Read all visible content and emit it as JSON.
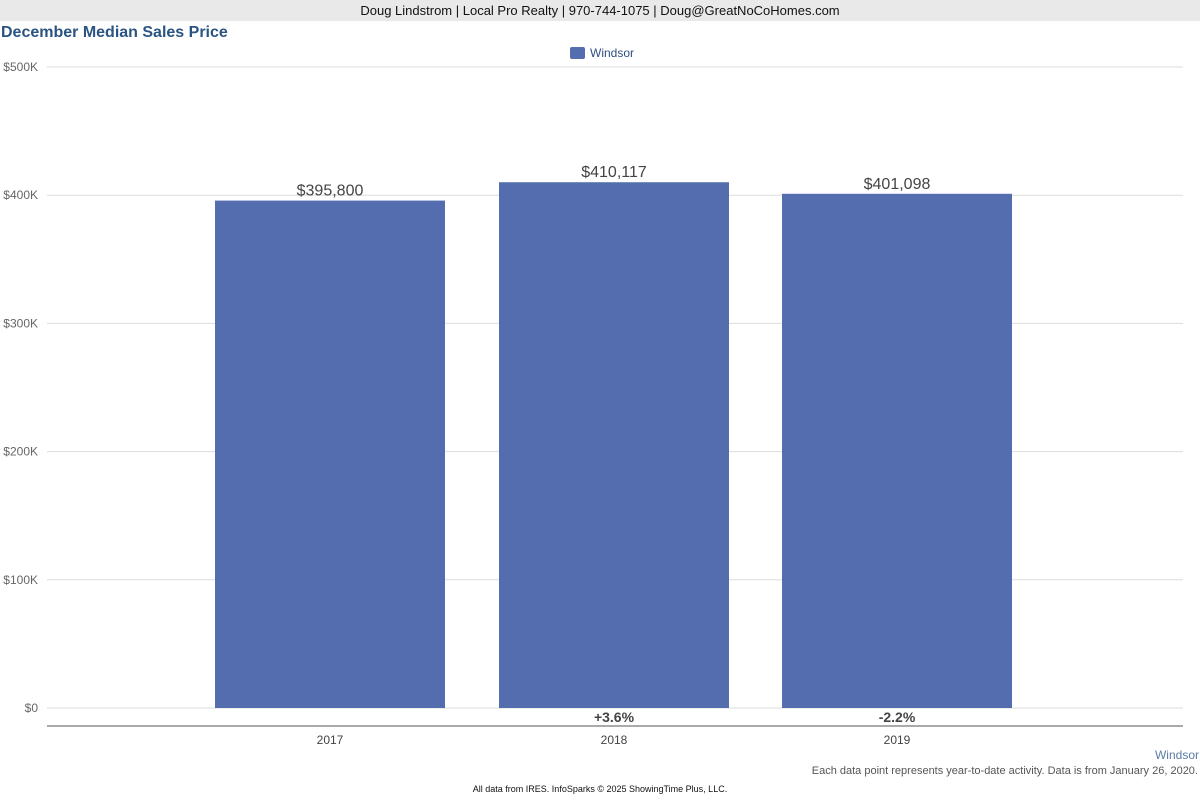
{
  "header": {
    "contact_line": "Doug Lindstrom | Local Pro Realty | 970-744-1075 | Doug@GreatNoCoHomes.com"
  },
  "chart_data": {
    "type": "bar",
    "title": "December Median Sales Price",
    "categories": [
      "2017",
      "2018",
      "2019"
    ],
    "series": [
      {
        "name": "Windsor",
        "values": [
          395800,
          410117,
          401098
        ],
        "value_labels": [
          "$395,800",
          "$410,117",
          "$401,098"
        ],
        "changes": [
          "",
          "+3.6%",
          "-2.2%"
        ],
        "color": "#536daf"
      }
    ],
    "ylim": [
      0,
      500000
    ],
    "yticks": [
      0,
      100000,
      200000,
      300000,
      400000,
      500000
    ],
    "ytick_labels": [
      "$0",
      "$100K",
      "$200K",
      "$300K",
      "$400K",
      "$500K"
    ],
    "xlabel": "",
    "ylabel": "",
    "grid": true,
    "legend": "top-center"
  },
  "footer": {
    "market": "Windsor",
    "note": "Each data point represents year-to-date activity. Data is from January 26, 2020.",
    "credit": "All data from IRES. InfoSparks © 2025 ShowingTime Plus, LLC."
  },
  "colors": {
    "bar": "#536daf",
    "title": "#2a5482",
    "grid": "#dddddd"
  }
}
